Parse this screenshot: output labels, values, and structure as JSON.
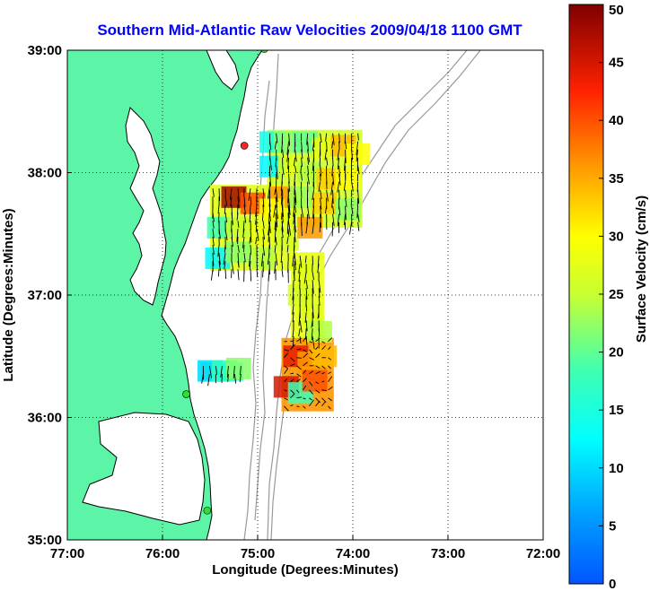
{
  "title": "Southern Mid-Atlantic Raw Velocities 2009/04/18 1100 GMT",
  "x_axis": {
    "label": "Longitude (Degrees:Minutes)",
    "ticks": [
      {
        "value": -77,
        "label": "77:00"
      },
      {
        "value": -76,
        "label": "76:00"
      },
      {
        "value": -75,
        "label": "75:00"
      },
      {
        "value": -74,
        "label": "74:00"
      },
      {
        "value": -73,
        "label": "73:00"
      },
      {
        "value": -72,
        "label": "72:00"
      }
    ],
    "range": [
      -77,
      -72
    ]
  },
  "y_axis": {
    "label": "Latitude (Degrees:Minutes)",
    "ticks": [
      {
        "value": 35,
        "label": "35:00"
      },
      {
        "value": 36,
        "label": "36:00"
      },
      {
        "value": 37,
        "label": "37:00"
      },
      {
        "value": 38,
        "label": "38:00"
      },
      {
        "value": 39,
        "label": "39:00"
      }
    ],
    "range": [
      35,
      39
    ]
  },
  "grid": "dotted",
  "colorbar": {
    "label": "Surface Velocity (cm/s)",
    "range": [
      0,
      50
    ],
    "colormap": "jet",
    "ticks": [
      {
        "value": 0,
        "label": "0"
      },
      {
        "value": 5,
        "label": "5"
      },
      {
        "value": 10,
        "label": "10"
      },
      {
        "value": 15,
        "label": "15"
      },
      {
        "value": 20,
        "label": "20"
      },
      {
        "value": 25,
        "label": "25"
      },
      {
        "value": 30,
        "label": "30"
      },
      {
        "value": 35,
        "label": "35"
      },
      {
        "value": 40,
        "label": "40"
      },
      {
        "value": 45,
        "label": "45"
      },
      {
        "value": 50,
        "label": "50"
      }
    ]
  },
  "colors": {
    "land": "#5cf5a8",
    "water": "#ffffff",
    "bathymetry": "#999999",
    "coastline": "#000000",
    "site_active": "#33dd33",
    "site_inactive": "#ff2222",
    "title": "#0000ff"
  },
  "stations": [
    {
      "lon": -74.93,
      "lat": 39.01,
      "status": "active"
    },
    {
      "lon": -75.14,
      "lat": 38.22,
      "status": "inactive"
    },
    {
      "lon": -75.75,
      "lat": 36.19,
      "status": "active"
    },
    {
      "lon": -75.53,
      "lat": 35.24,
      "status": "active"
    }
  ],
  "velocity_regions": [
    {
      "name": "north",
      "lon": [
        -74.9,
        -73.9
      ],
      "lat": [
        37.55,
        38.35
      ],
      "cells": [
        {
          "lon": -74.85,
          "lat": 38.25,
          "speed": 14
        },
        {
          "lon": -74.7,
          "lat": 38.25,
          "speed": 22
        },
        {
          "lon": -74.5,
          "lat": 38.25,
          "speed": 20
        },
        {
          "lon": -74.3,
          "lat": 38.2,
          "speed": 28
        },
        {
          "lon": -74.1,
          "lat": 38.22,
          "speed": 34
        },
        {
          "lon": -73.95,
          "lat": 38.15,
          "speed": 30
        },
        {
          "lon": -74.85,
          "lat": 38.05,
          "speed": 12
        },
        {
          "lon": -74.65,
          "lat": 38.05,
          "speed": 27
        },
        {
          "lon": -74.45,
          "lat": 38.0,
          "speed": 24
        },
        {
          "lon": -74.25,
          "lat": 37.95,
          "speed": 33
        },
        {
          "lon": -74.05,
          "lat": 37.95,
          "speed": 30
        },
        {
          "lon": -74.75,
          "lat": 37.8,
          "speed": 36
        },
        {
          "lon": -74.55,
          "lat": 37.8,
          "speed": 23
        },
        {
          "lon": -74.3,
          "lat": 37.75,
          "speed": 33
        },
        {
          "lon": -74.05,
          "lat": 37.7,
          "speed": 22
        }
      ]
    },
    {
      "name": "west",
      "lon": [
        -75.5,
        -74.6
      ],
      "lat": [
        37.2,
        37.9
      ],
      "cells": [
        {
          "lon": -75.25,
          "lat": 37.8,
          "speed": 48
        },
        {
          "lon": -75.05,
          "lat": 37.75,
          "speed": 40
        },
        {
          "lon": -74.85,
          "lat": 37.7,
          "speed": 30
        },
        {
          "lon": -75.4,
          "lat": 37.55,
          "speed": 18
        },
        {
          "lon": -75.2,
          "lat": 37.55,
          "speed": 25
        },
        {
          "lon": -74.95,
          "lat": 37.5,
          "speed": 28
        },
        {
          "lon": -74.7,
          "lat": 37.45,
          "speed": 26
        },
        {
          "lon": -75.42,
          "lat": 37.3,
          "speed": 12
        },
        {
          "lon": -75.2,
          "lat": 37.35,
          "speed": 22
        },
        {
          "lon": -74.95,
          "lat": 37.3,
          "speed": 24
        }
      ]
    },
    {
      "name": "middle",
      "lon": [
        -74.65,
        -74.3
      ],
      "lat": [
        36.6,
        37.35
      ],
      "cells": [
        {
          "lon": -74.45,
          "lat": 37.55,
          "speed": 36
        },
        {
          "lon": -74.5,
          "lat": 37.2,
          "speed": 27
        },
        {
          "lon": -74.55,
          "lat": 37.0,
          "speed": 26
        },
        {
          "lon": -74.45,
          "lat": 36.85,
          "speed": 27
        },
        {
          "lon": -74.35,
          "lat": 36.7,
          "speed": 24
        }
      ]
    },
    {
      "name": "south",
      "lon": [
        -74.75,
        -74.2
      ],
      "lat": [
        36.05,
        36.65
      ],
      "cells": [
        {
          "lon": -74.6,
          "lat": 36.5,
          "speed": 44
        },
        {
          "lon": -74.45,
          "lat": 36.45,
          "speed": 36
        },
        {
          "lon": -74.3,
          "lat": 36.5,
          "speed": 34
        },
        {
          "lon": -74.7,
          "lat": 36.25,
          "speed": 45
        },
        {
          "lon": -74.55,
          "lat": 36.2,
          "speed": 18
        },
        {
          "lon": -74.4,
          "lat": 36.3,
          "speed": 40
        }
      ]
    },
    {
      "name": "southwest",
      "lon": [
        -75.6,
        -75.15
      ],
      "lat": [
        36.3,
        36.45
      ],
      "cells": [
        {
          "lon": -75.5,
          "lat": 36.38,
          "speed": 10
        },
        {
          "lon": -75.35,
          "lat": 36.38,
          "speed": 17
        },
        {
          "lon": -75.2,
          "lat": 36.4,
          "speed": 22
        }
      ]
    }
  ]
}
